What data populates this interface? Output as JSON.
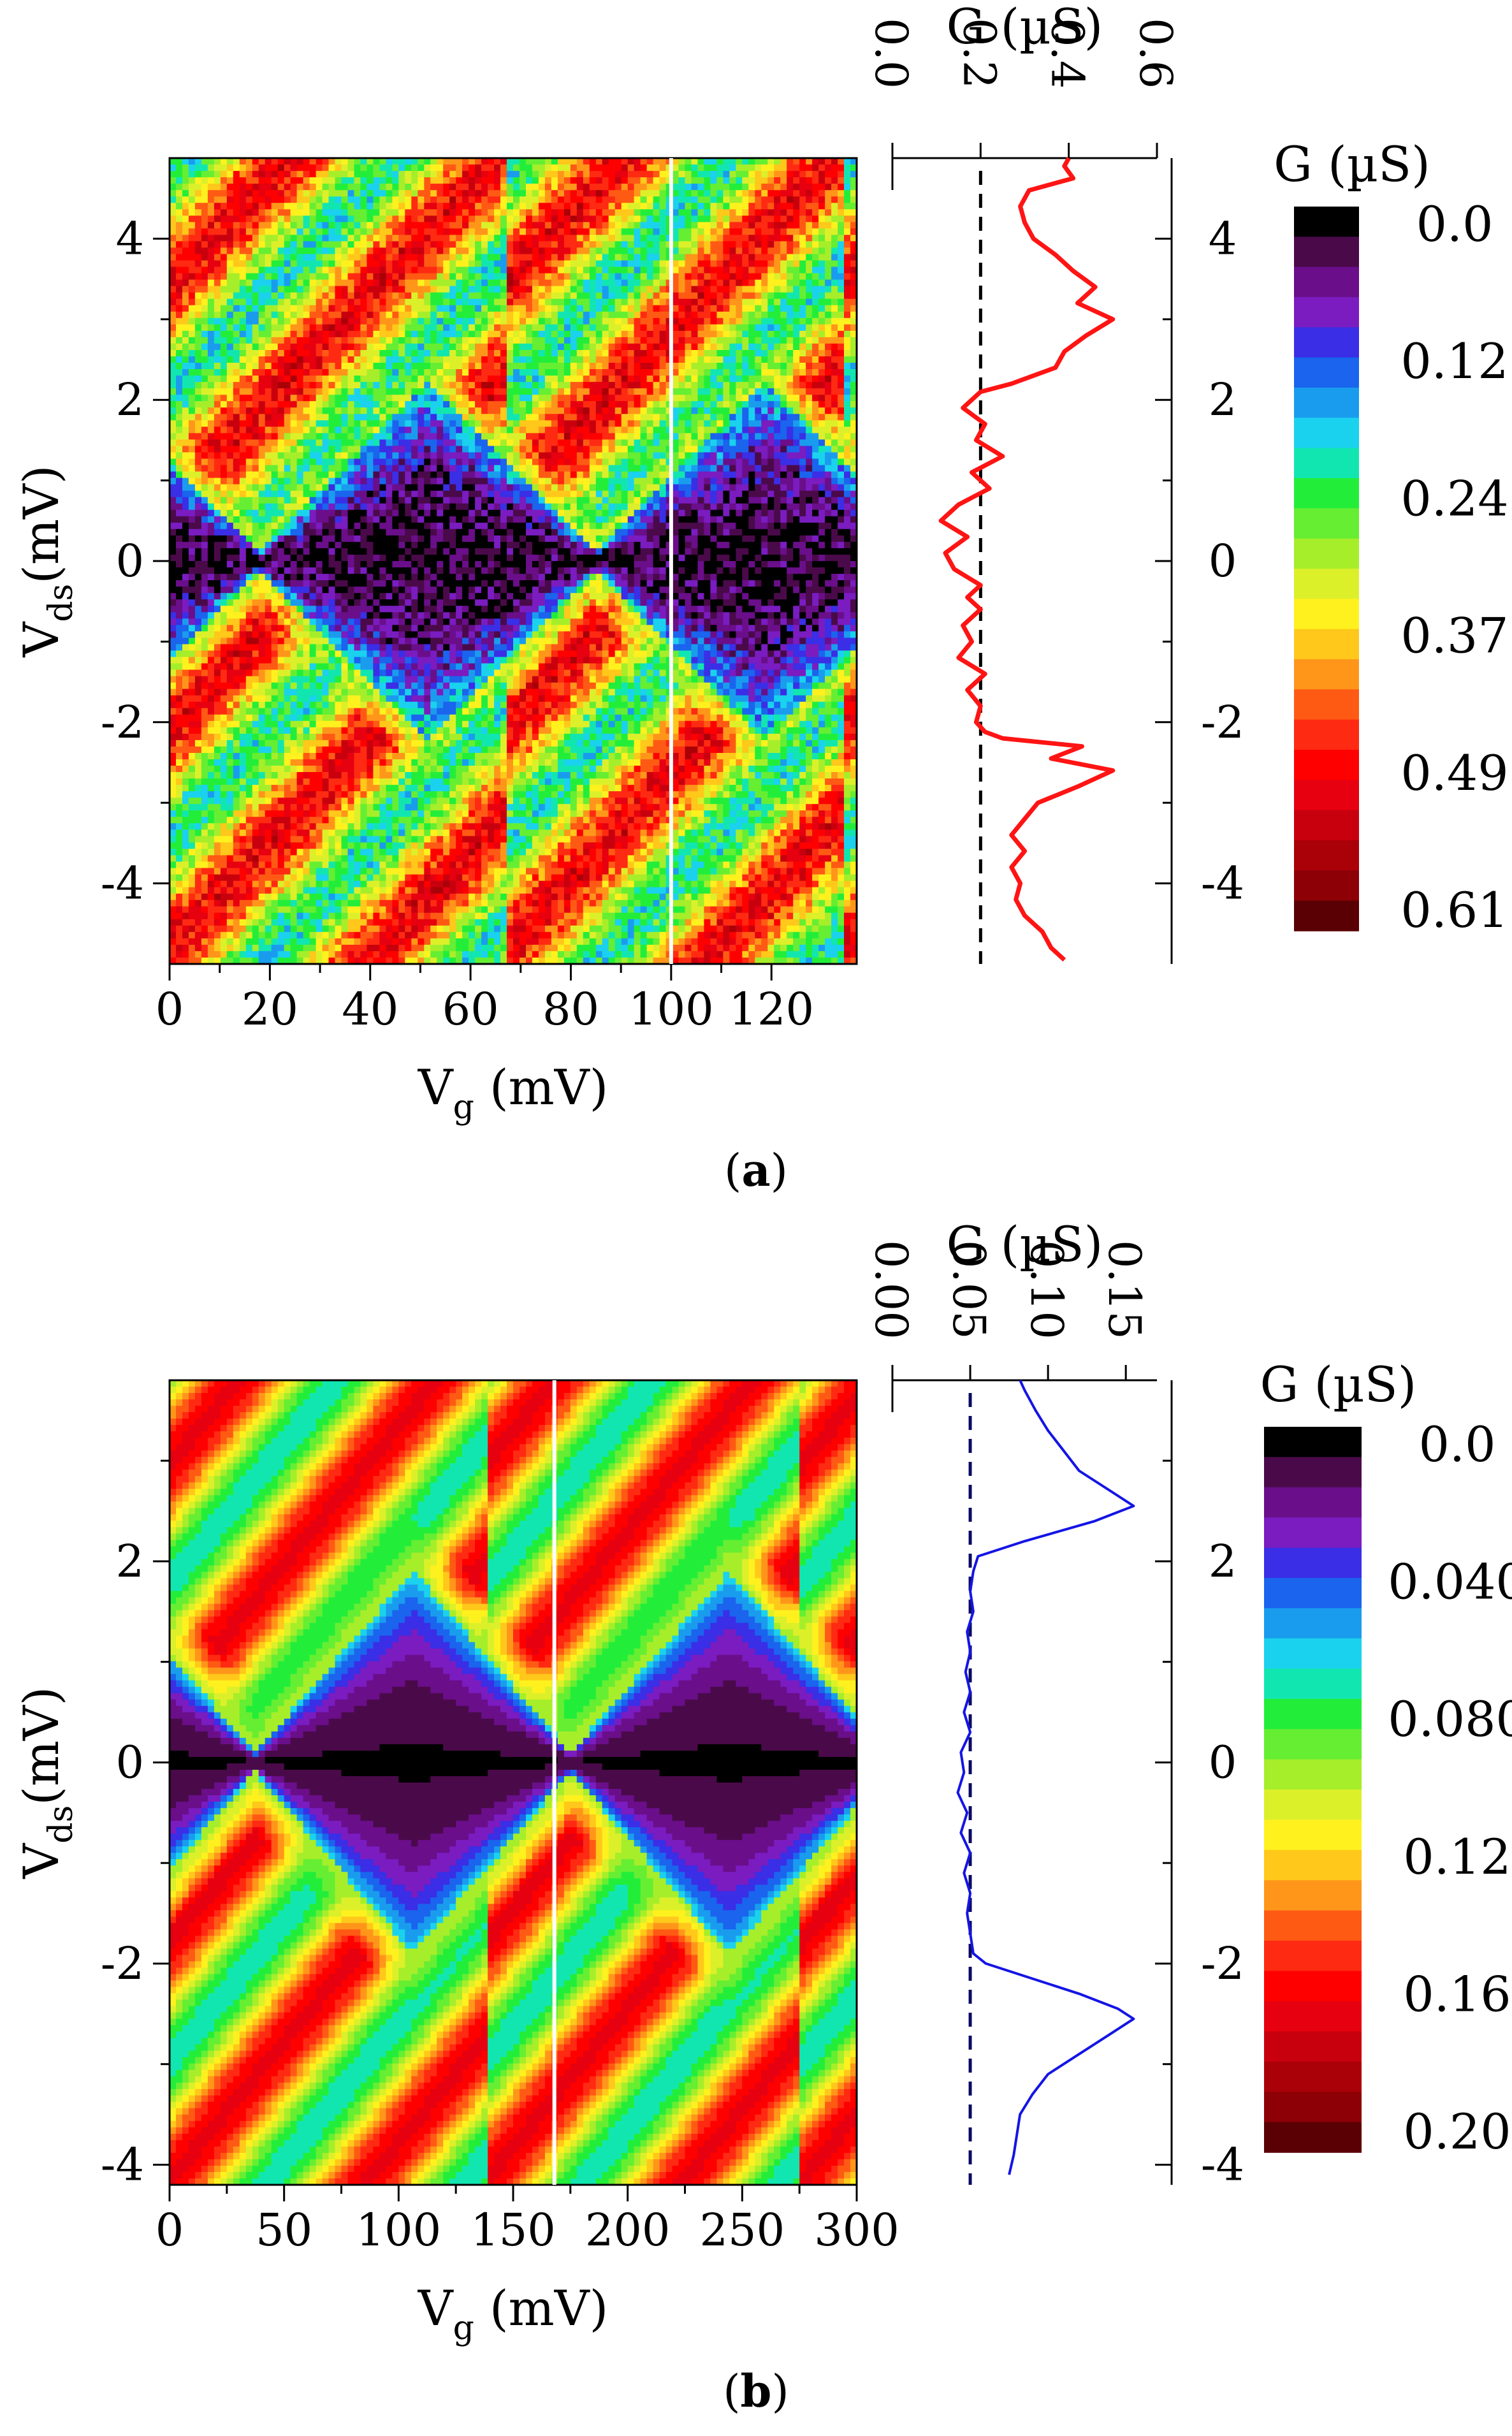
{
  "colors": {
    "cmap": [
      "#000000",
      "#4a0a4a",
      "#6a0e8a",
      "#7a1cc0",
      "#3a2ee6",
      "#1a64ee",
      "#1a9cee",
      "#1ad2ee",
      "#12e6b0",
      "#22ee3a",
      "#66ee32",
      "#a6ee2a",
      "#dcf02a",
      "#fff11e",
      "#ffc81a",
      "#ff961a",
      "#ff5a14",
      "#ff2a12",
      "#ff0000",
      "#e60010",
      "#c8000e",
      "#aa0008",
      "#8c0006",
      "#5a0004"
    ],
    "line_a": "#ff1414",
    "line_b": "#1414e6",
    "dash_a": "#000000",
    "dash_b": "#0a0a64",
    "cursor": "#ffffff"
  },
  "chart_data": [
    {
      "panel": "a",
      "caption_text": "a",
      "type": "heatmap",
      "xlabel_main": "V",
      "xlabel_sub": "g",
      "xlabel_unit": " (mV)",
      "ylabel_main": "V",
      "ylabel_sub": "ds",
      "ylabel_unit": "(mV)",
      "xlim": [
        0,
        137
      ],
      "ylim": [
        -5,
        5
      ],
      "xticks": [
        0,
        20,
        40,
        60,
        80,
        100,
        120
      ],
      "yticks": [
        -4,
        -2,
        0,
        2,
        4
      ],
      "cursor_vg": 100,
      "period_vg": 67,
      "charging_gap_mV": 2.2,
      "noise": 0.09,
      "cut": {
        "xlabel": "G (µS)",
        "xlim": [
          0,
          0.6
        ],
        "xticks": [
          0.0,
          0.2,
          0.4,
          0.6
        ],
        "xtick_labels": [
          "0.0",
          "0.2",
          "0.4",
          "0.6"
        ],
        "threshold": 0.2,
        "points": [
          [
            -4.95,
            0.39
          ],
          [
            -4.8,
            0.36
          ],
          [
            -4.6,
            0.34
          ],
          [
            -4.4,
            0.3
          ],
          [
            -4.2,
            0.28
          ],
          [
            -4.0,
            0.29
          ],
          [
            -3.8,
            0.27
          ],
          [
            -3.6,
            0.3
          ],
          [
            -3.4,
            0.27
          ],
          [
            -3.2,
            0.3
          ],
          [
            -3.0,
            0.33
          ],
          [
            -2.8,
            0.42
          ],
          [
            -2.6,
            0.5
          ],
          [
            -2.45,
            0.36
          ],
          [
            -2.3,
            0.43
          ],
          [
            -2.2,
            0.25
          ],
          [
            -2.12,
            0.21
          ],
          [
            -2.0,
            0.19
          ],
          [
            -1.8,
            0.2
          ],
          [
            -1.6,
            0.17
          ],
          [
            -1.4,
            0.21
          ],
          [
            -1.2,
            0.15
          ],
          [
            -1.0,
            0.18
          ],
          [
            -0.8,
            0.16
          ],
          [
            -0.6,
            0.2
          ],
          [
            -0.45,
            0.17
          ],
          [
            -0.3,
            0.2
          ],
          [
            -0.1,
            0.14
          ],
          [
            0.1,
            0.12
          ],
          [
            0.3,
            0.17
          ],
          [
            0.5,
            0.11
          ],
          [
            0.7,
            0.15
          ],
          [
            0.9,
            0.22
          ],
          [
            1.1,
            0.18
          ],
          [
            1.3,
            0.25
          ],
          [
            1.5,
            0.19
          ],
          [
            1.7,
            0.21
          ],
          [
            1.9,
            0.16
          ],
          [
            2.1,
            0.2
          ],
          [
            2.2,
            0.27
          ],
          [
            2.4,
            0.37
          ],
          [
            2.6,
            0.39
          ],
          [
            2.8,
            0.44
          ],
          [
            3.0,
            0.5
          ],
          [
            3.2,
            0.42
          ],
          [
            3.4,
            0.46
          ],
          [
            3.6,
            0.41
          ],
          [
            3.8,
            0.37
          ],
          [
            4.0,
            0.32
          ],
          [
            4.2,
            0.3
          ],
          [
            4.4,
            0.29
          ],
          [
            4.6,
            0.31
          ],
          [
            4.75,
            0.41
          ],
          [
            4.9,
            0.39
          ],
          [
            5.0,
            0.4
          ]
        ]
      },
      "colorbar": {
        "title": "G (µS)",
        "labels": [
          "0.0",
          "0.12",
          "0.24",
          "0.37",
          "0.49",
          "0.61"
        ]
      }
    },
    {
      "panel": "b",
      "caption_text": "b",
      "type": "heatmap",
      "xlabel_main": "V",
      "xlabel_sub": "g",
      "xlabel_unit": " (mV)",
      "ylabel_main": "V",
      "ylabel_sub": "ds",
      "ylabel_unit": "(mV)",
      "xlim": [
        0,
        300
      ],
      "ylim": [
        -4.2,
        3.8
      ],
      "xticks": [
        0,
        50,
        100,
        150,
        200,
        250,
        300
      ],
      "yticks": [
        -4,
        -2,
        0,
        2
      ],
      "cursor_vg": 168,
      "period_vg": 138,
      "charging_gap_mV": 1.9,
      "noise": 0.0,
      "cut": {
        "xlabel": "G (µS)",
        "xlim": [
          0,
          0.17
        ],
        "xticks": [
          0.0,
          0.05,
          0.1,
          0.15
        ],
        "xtick_labels": [
          "0.00",
          "0.05",
          "0.10",
          "0.15"
        ],
        "threshold": 0.05,
        "points": [
          [
            -4.1,
            0.075
          ],
          [
            -3.9,
            0.078
          ],
          [
            -3.7,
            0.08
          ],
          [
            -3.5,
            0.082
          ],
          [
            -3.3,
            0.09
          ],
          [
            -3.1,
            0.1
          ],
          [
            -2.9,
            0.12
          ],
          [
            -2.7,
            0.14
          ],
          [
            -2.55,
            0.155
          ],
          [
            -2.45,
            0.145
          ],
          [
            -2.3,
            0.12
          ],
          [
            -2.15,
            0.09
          ],
          [
            -2.0,
            0.06
          ],
          [
            -1.9,
            0.052
          ],
          [
            -1.7,
            0.05
          ],
          [
            -1.5,
            0.048
          ],
          [
            -1.3,
            0.05
          ],
          [
            -1.1,
            0.046
          ],
          [
            -0.9,
            0.05
          ],
          [
            -0.7,
            0.044
          ],
          [
            -0.5,
            0.048
          ],
          [
            -0.3,
            0.042
          ],
          [
            -0.1,
            0.046
          ],
          [
            0.1,
            0.044
          ],
          [
            0.3,
            0.05
          ],
          [
            0.5,
            0.046
          ],
          [
            0.7,
            0.05
          ],
          [
            0.9,
            0.047
          ],
          [
            1.1,
            0.05
          ],
          [
            1.3,
            0.048
          ],
          [
            1.5,
            0.052
          ],
          [
            1.7,
            0.05
          ],
          [
            1.9,
            0.052
          ],
          [
            2.05,
            0.055
          ],
          [
            2.2,
            0.085
          ],
          [
            2.4,
            0.13
          ],
          [
            2.55,
            0.155
          ],
          [
            2.7,
            0.14
          ],
          [
            2.9,
            0.12
          ],
          [
            3.1,
            0.11
          ],
          [
            3.3,
            0.1
          ],
          [
            3.5,
            0.092
          ],
          [
            3.7,
            0.085
          ],
          [
            3.8,
            0.082
          ]
        ]
      },
      "colorbar": {
        "title": "G (µS)",
        "labels": [
          "0.0",
          "0.040",
          "0.080",
          "0.12",
          "0.16",
          "0.20"
        ]
      }
    }
  ]
}
